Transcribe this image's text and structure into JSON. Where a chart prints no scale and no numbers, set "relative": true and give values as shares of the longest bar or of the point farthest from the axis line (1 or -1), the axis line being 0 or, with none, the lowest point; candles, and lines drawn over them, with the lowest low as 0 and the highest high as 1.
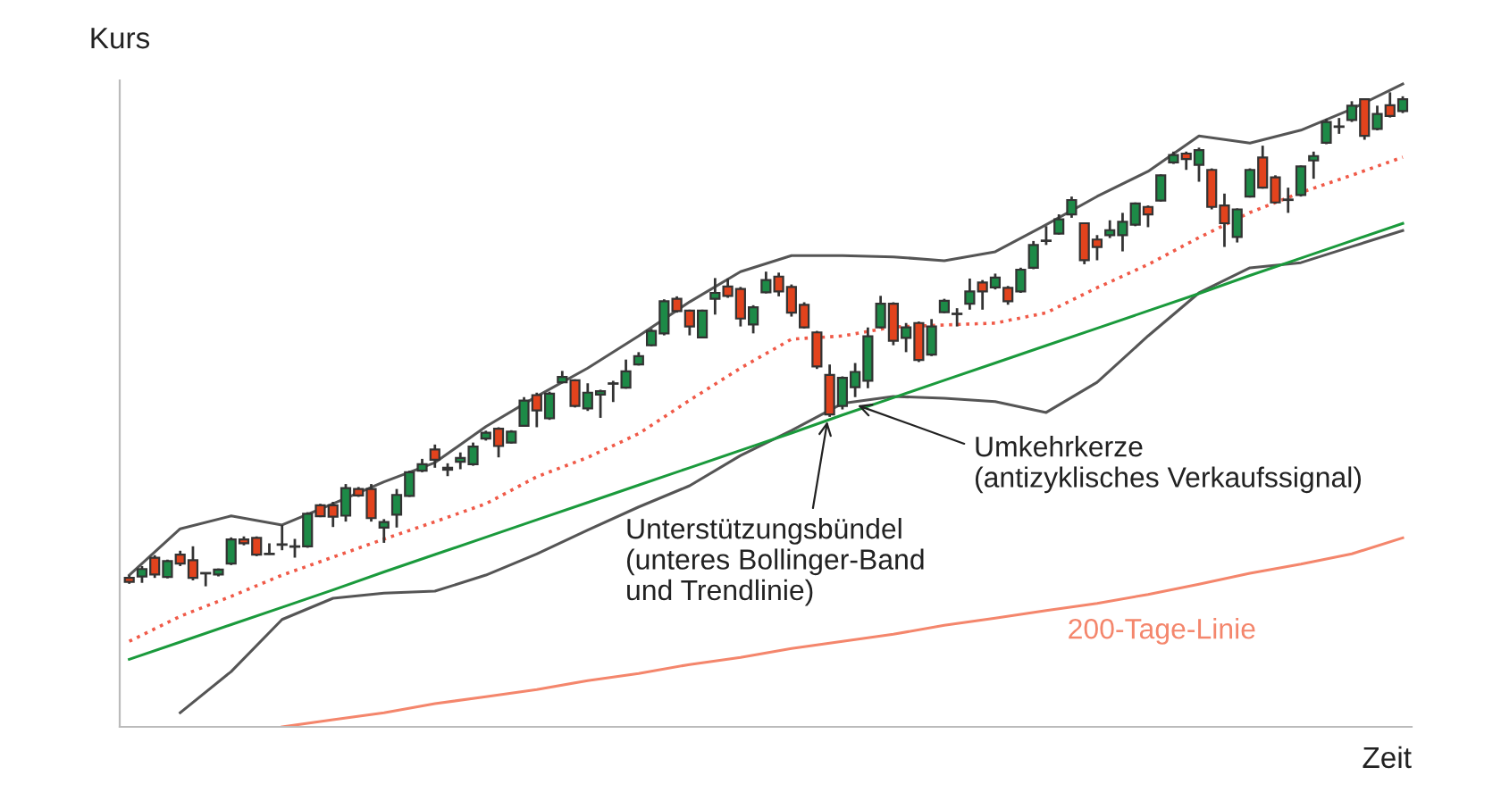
{
  "chart_data": [
    {
      "type": "candlestick",
      "relative": true,
      "xlabel": "Zeit",
      "ylabel": "Kurs",
      "categories": [
        null,
        null,
        null,
        null,
        null,
        null,
        null,
        null,
        null,
        null,
        null,
        null,
        null,
        null,
        null,
        null,
        null,
        null,
        null,
        null,
        null,
        null,
        null,
        null,
        null,
        null,
        null,
        null,
        null,
        null,
        null,
        null,
        null,
        null,
        null,
        null,
        null,
        null,
        null,
        null,
        null,
        null,
        null,
        null,
        null,
        null,
        null,
        null,
        null,
        null,
        null,
        null,
        null,
        null,
        null,
        null,
        null,
        null,
        null,
        null,
        null,
        null,
        null,
        null,
        null,
        null,
        null,
        null,
        null,
        null,
        null,
        null,
        null,
        null,
        null,
        null,
        null,
        null,
        null,
        null,
        null,
        null,
        null,
        null,
        null,
        null,
        null,
        null,
        null,
        null,
        null,
        null,
        null,
        null,
        null,
        null,
        null,
        null,
        null,
        null,
        null
      ],
      "colors": [
        "#e2431d",
        "#1d8a47",
        "#e2431d",
        "#1d8a47",
        "#e2431d",
        "#e2431d",
        "#e2431d",
        "#1d8a47",
        "#1d8a47",
        "#e2431d",
        "#e2431d",
        "#e2431d",
        "#1d8a47",
        "#e2431d",
        "#1d8a47",
        "#e2431d",
        "#e2431d",
        "#1d8a47",
        "#e2431d",
        "#e2431d",
        "#1d8a47",
        "#1d8a47",
        "#1d8a47",
        "#1d8a47",
        "#e2431d",
        "#e2431d",
        "#1d8a47",
        "#1d8a47",
        "#1d8a47",
        "#e2431d",
        "#1d8a47",
        "#1d8a47",
        "#e2431d",
        "#1d8a47",
        "#1d8a47",
        "#e2431d",
        "#1d8a47",
        "#1d8a47",
        "#e2431d",
        "#1d8a47",
        "#1d8a47",
        "#1d8a47",
        "#1d8a47",
        "#e2431d",
        "#e2431d",
        "#1d8a47",
        "#1d8a47",
        "#e2431d",
        "#e2431d",
        "#1d8a47",
        "#1d8a47",
        "#e2431d",
        "#e2431d",
        "#e2431d",
        "#e2431d",
        "#e2431d",
        "#1d8a47",
        "#1d8a47",
        "#1d8a47",
        "#1d8a47",
        "#e2431d",
        "#1d8a47",
        "#e2431d",
        "#1d8a47",
        "#1d8a47",
        "#e2431d",
        "#1d8a47",
        "#e2431d",
        "#1d8a47",
        "#e2431d",
        "#1d8a47",
        "#1d8a47",
        "#e2431d",
        "#1d8a47",
        "#1d8a47",
        "#e2431d",
        "#e2431d",
        "#1d8a47",
        "#1d8a47",
        "#1d8a47",
        "#e2431d",
        "#1d8a47",
        "#1d8a47",
        "#e2431d",
        "#1d8a47",
        "#e2431d",
        "#e2431d",
        "#1d8a47",
        "#1d8a47",
        "#e2431d",
        "#e2431d",
        "#e2431d",
        "#1d8a47",
        "#1d8a47",
        "#1d8a47",
        "#e2431d",
        "#1d8a47",
        "#e2431d",
        "#1d8a47",
        "#e2431d",
        "#1d8a47"
      ],
      "ohlc": [
        [
          0.017,
          0.022,
          0.005,
          0.009
        ],
        [
          0.02,
          0.041,
          0.007,
          0.035
        ],
        [
          0.058,
          0.063,
          0.017,
          0.024
        ],
        [
          0.019,
          0.054,
          0.016,
          0.051
        ],
        [
          0.064,
          0.072,
          0.041,
          0.046
        ],
        [
          0.053,
          0.081,
          0.012,
          0.017
        ],
        [
          0.027,
          0.027,
          0.0,
          0.026
        ],
        [
          0.024,
          0.036,
          0.02,
          0.034
        ],
        [
          0.046,
          0.099,
          0.043,
          0.095
        ],
        [
          0.095,
          0.101,
          0.083,
          0.087
        ],
        [
          0.098,
          0.101,
          0.061,
          0.064
        ],
        [
          0.066,
          0.087,
          0.064,
          0.065
        ],
        [
          0.084,
          0.124,
          0.073,
          0.085
        ],
        [
          0.081,
          0.096,
          0.058,
          0.08
        ],
        [
          0.081,
          0.15,
          0.078,
          0.147
        ],
        [
          0.164,
          0.167,
          0.14,
          0.142
        ],
        [
          0.164,
          0.171,
          0.12,
          0.141
        ],
        [
          0.143,
          0.207,
          0.131,
          0.199
        ],
        [
          0.197,
          0.201,
          0.181,
          0.184
        ],
        [
          0.197,
          0.207,
          0.131,
          0.138
        ],
        [
          0.119,
          0.136,
          0.088,
          0.13
        ],
        [
          0.145,
          0.197,
          0.119,
          0.185
        ],
        [
          0.183,
          0.234,
          0.181,
          0.231
        ],
        [
          0.234,
          0.258,
          0.231,
          0.247
        ],
        [
          0.277,
          0.287,
          0.24,
          0.256
        ],
        [
          0.24,
          0.249,
          0.223,
          0.236
        ],
        [
          0.252,
          0.271,
          0.237,
          0.26
        ],
        [
          0.247,
          0.291,
          0.244,
          0.283
        ],
        [
          0.299,
          0.315,
          0.295,
          0.311
        ],
        [
          0.319,
          0.322,
          0.261,
          0.284
        ],
        [
          0.291,
          0.316,
          0.289,
          0.313
        ],
        [
          0.325,
          0.383,
          0.323,
          0.376
        ],
        [
          0.387,
          0.392,
          0.322,
          0.356
        ],
        [
          0.34,
          0.394,
          0.337,
          0.39
        ],
        [
          0.413,
          0.436,
          0.411,
          0.424
        ],
        [
          0.417,
          0.419,
          0.362,
          0.365
        ],
        [
          0.36,
          0.411,
          0.355,
          0.392
        ],
        [
          0.388,
          0.398,
          0.341,
          0.395
        ],
        [
          0.411,
          0.416,
          0.373,
          0.41
        ],
        [
          0.402,
          0.459,
          0.4,
          0.435
        ],
        [
          0.449,
          0.474,
          0.447,
          0.466
        ],
        [
          0.488,
          0.521,
          0.486,
          0.517
        ],
        [
          0.512,
          0.581,
          0.508,
          0.577
        ],
        [
          0.582,
          0.587,
          0.554,
          0.557
        ],
        [
          0.558,
          0.56,
          0.508,
          0.526
        ],
        [
          0.504,
          0.56,
          0.503,
          0.558
        ],
        [
          0.582,
          0.624,
          0.55,
          0.594
        ],
        [
          0.607,
          0.623,
          0.584,
          0.588
        ],
        [
          0.602,
          0.606,
          0.526,
          0.542
        ],
        [
          0.53,
          0.569,
          0.512,
          0.565
        ],
        [
          0.595,
          0.637,
          0.593,
          0.62
        ],
        [
          0.627,
          0.635,
          0.587,
          0.597
        ],
        [
          0.606,
          0.611,
          0.546,
          0.554
        ],
        [
          0.57,
          0.575,
          0.522,
          0.524
        ],
        [
          0.514,
          0.517,
          0.44,
          0.445
        ],
        [
          0.428,
          0.449,
          0.343,
          0.348
        ],
        [
          0.365,
          0.425,
          0.358,
          0.422
        ],
        [
          0.403,
          0.452,
          0.383,
          0.434
        ],
        [
          0.416,
          0.524,
          0.401,
          0.506
        ],
        [
          0.524,
          0.588,
          0.522,
          0.572
        ],
        [
          0.572,
          0.575,
          0.488,
          0.497
        ],
        [
          0.503,
          0.533,
          0.474,
          0.524
        ],
        [
          0.533,
          0.536,
          0.454,
          0.458
        ],
        [
          0.469,
          0.541,
          0.466,
          0.526
        ],
        [
          0.555,
          0.582,
          0.553,
          0.578
        ],
        [
          0.552,
          0.563,
          0.526,
          0.551
        ],
        [
          0.572,
          0.623,
          0.56,
          0.597
        ],
        [
          0.615,
          0.62,
          0.56,
          0.597
        ],
        [
          0.605,
          0.633,
          0.601,
          0.625
        ],
        [
          0.604,
          0.608,
          0.57,
          0.577
        ],
        [
          0.597,
          0.645,
          0.594,
          0.641
        ],
        [
          0.645,
          0.699,
          0.642,
          0.691
        ],
        [
          0.7,
          0.729,
          0.691,
          0.699
        ],
        [
          0.714,
          0.753,
          0.712,
          0.743
        ],
        [
          0.753,
          0.789,
          0.746,
          0.782
        ],
        [
          0.735,
          0.735,
          0.652,
          0.66
        ],
        [
          0.702,
          0.711,
          0.66,
          0.687
        ],
        [
          0.711,
          0.741,
          0.705,
          0.721
        ],
        [
          0.711,
          0.756,
          0.678,
          0.738
        ],
        [
          0.732,
          0.777,
          0.729,
          0.775
        ],
        [
          0.768,
          0.771,
          0.727,
          0.753
        ],
        [
          0.781,
          0.834,
          0.779,
          0.832
        ],
        [
          0.858,
          0.88,
          0.855,
          0.873
        ],
        [
          0.876,
          0.88,
          0.843,
          0.865
        ],
        [
          0.853,
          0.888,
          0.819,
          0.883
        ],
        [
          0.843,
          0.846,
          0.763,
          0.768
        ],
        [
          0.771,
          0.795,
          0.687,
          0.735
        ],
        [
          0.707,
          0.765,
          0.696,
          0.763
        ],
        [
          0.789,
          0.846,
          0.787,
          0.843
        ],
        [
          0.868,
          0.892,
          0.805,
          0.807
        ],
        [
          0.828,
          0.832,
          0.775,
          0.777
        ],
        [
          0.783,
          0.807,
          0.756,
          0.782
        ],
        [
          0.792,
          0.852,
          0.789,
          0.85
        ],
        [
          0.862,
          0.88,
          0.825,
          0.871
        ],
        [
          0.898,
          0.946,
          0.895,
          0.94
        ],
        [
          0.931,
          0.948,
          0.916,
          0.93
        ],
        [
          0.944,
          0.982,
          0.94,
          0.973
        ],
        [
          0.986,
          0.988,
          0.904,
          0.912
        ],
        [
          0.926,
          0.973,
          0.923,
          0.956
        ],
        [
          0.974,
          1.0,
          0.949,
          0.952
        ],
        [
          0.962,
          0.992,
          0.958,
          0.986
        ]
      ],
      "annotations": [
        "Umkehrkerze\n(antizyklisches Verkaufssignal)",
        "Unterstützungsbündel\n(unteres Bollinger-Band\nund Trendlinie)"
      ]
    },
    {
      "type": "line",
      "relative": true,
      "legend": false,
      "categories": [
        null,
        null,
        null,
        null,
        null,
        null,
        null,
        null,
        null,
        null,
        null,
        null,
        null,
        null,
        null,
        null,
        null,
        null,
        null,
        null,
        null,
        null,
        null,
        null,
        null,
        null
      ],
      "series": [
        {
          "color": "#555555",
          "line_style": "solid",
          "values": [
            0.236,
            0.308,
            0.328,
            0.314,
            0.347,
            0.381,
            0.411,
            0.467,
            0.514,
            0.558,
            0.608,
            0.661,
            0.708,
            0.733,
            0.733,
            0.731,
            0.725,
            0.739,
            0.781,
            0.825,
            0.864,
            0.919,
            0.908,
            0.928,
            0.961,
            1.0
          ]
        },
        {
          "color": "#555555",
          "line_style": "solid",
          "values": [
            null,
            0.022,
            0.086,
            0.167,
            0.2,
            0.208,
            0.211,
            0.236,
            0.269,
            0.306,
            0.342,
            0.375,
            0.422,
            0.461,
            0.503,
            0.514,
            0.511,
            0.506,
            0.489,
            0.536,
            0.608,
            0.675,
            0.714,
            0.722,
            0.747,
            0.772
          ]
        },
        {
          "color": "#f05a48",
          "line_style": "dotted",
          "values": [
            0.133,
            0.172,
            0.203,
            0.236,
            0.264,
            0.292,
            0.319,
            0.347,
            0.389,
            0.419,
            0.456,
            0.508,
            0.558,
            0.603,
            0.608,
            0.622,
            0.625,
            0.628,
            0.644,
            0.683,
            0.719,
            0.761,
            0.8,
            0.831,
            0.858,
            0.886
          ]
        },
        {
          "color": "#1a9a3c",
          "line_style": "solid",
          "values": [
            0.105,
            0.132,
            0.159,
            0.186,
            0.213,
            0.241,
            0.268,
            0.295,
            0.322,
            0.349,
            0.376,
            0.403,
            0.43,
            0.457,
            0.485,
            0.512,
            0.539,
            0.566,
            0.593,
            0.62,
            0.647,
            0.674,
            0.702,
            0.729,
            0.756,
            0.783
          ]
        },
        {
          "name": "200-Tage-Linie",
          "color": "#f4866c",
          "line_style": "solid",
          "values": [
            null,
            null,
            null,
            0.0,
            0.011,
            0.022,
            0.036,
            0.047,
            0.058,
            0.072,
            0.083,
            0.097,
            0.108,
            0.122,
            0.133,
            0.144,
            0.158,
            0.169,
            0.181,
            0.192,
            0.206,
            0.222,
            0.239,
            0.253,
            0.269,
            0.294
          ]
        }
      ]
    }
  ]
}
